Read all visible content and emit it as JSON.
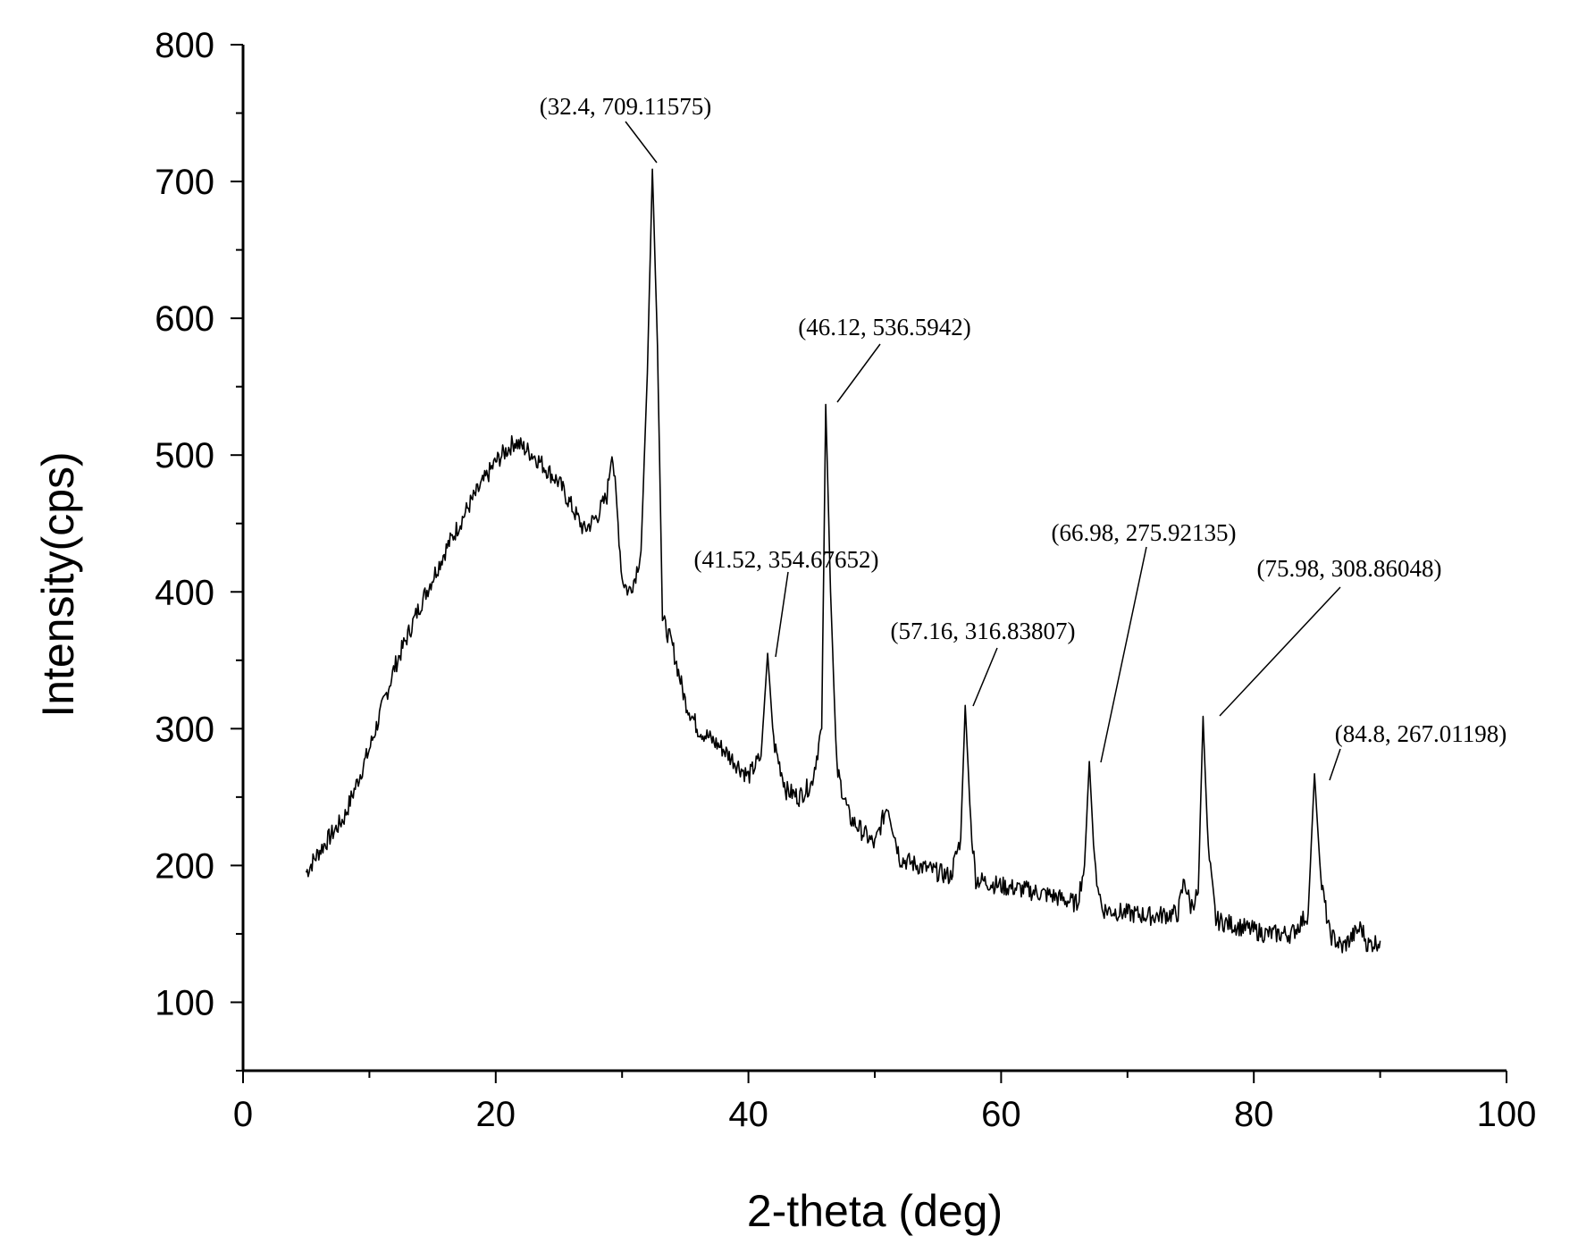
{
  "chart_data": {
    "type": "line",
    "xlabel": "2-theta (deg)",
    "ylabel": "Intensity(cps)",
    "xlim": [
      0,
      100
    ],
    "ylim": [
      50,
      800
    ],
    "x_ticks": [
      0,
      20,
      40,
      60,
      80,
      100
    ],
    "x_tick_labels": [
      "0",
      "20",
      "40",
      "60",
      "80",
      "100"
    ],
    "y_ticks": [
      100,
      200,
      300,
      400,
      500,
      600,
      700,
      800
    ],
    "y_tick_labels": [
      "100",
      "200",
      "300",
      "400",
      "500",
      "600",
      "700",
      "800"
    ],
    "grid": false,
    "series": [
      {
        "x": [
          5,
          6,
          8,
          10,
          12,
          14,
          16,
          18,
          20,
          21.5,
          23,
          25,
          27,
          28,
          28.8,
          29.2,
          29.6,
          30,
          30.5,
          31,
          31.5,
          32,
          32.4,
          32.8,
          33.2,
          34,
          35,
          36,
          38,
          40,
          41,
          41.52,
          42,
          43,
          44,
          45,
          45.8,
          46.12,
          46.5,
          47,
          48,
          50,
          51,
          52,
          54,
          56,
          56.8,
          57.16,
          57.6,
          58,
          60,
          62,
          64,
          66,
          66.6,
          66.98,
          67.4,
          68,
          70,
          72,
          74,
          74.5,
          75,
          75.6,
          75.98,
          76.4,
          77,
          79,
          81,
          83,
          84.3,
          84.8,
          85.3,
          86,
          87,
          88,
          88.5,
          89,
          90
        ],
        "y": [
          195,
          210,
          235,
          285,
          345,
          390,
          430,
          465,
          495,
          510,
          500,
          480,
          445,
          455,
          470,
          505,
          460,
          410,
          400,
          410,
          430,
          560,
          709,
          580,
          380,
          360,
          320,
          300,
          285,
          265,
          280,
          355,
          290,
          255,
          250,
          260,
          300,
          537,
          400,
          270,
          235,
          215,
          245,
          205,
          198,
          192,
          220,
          317,
          230,
          190,
          185,
          182,
          178,
          172,
          200,
          276,
          200,
          168,
          165,
          163,
          165,
          190,
          170,
          180,
          309,
          210,
          160,
          155,
          150,
          150,
          165,
          267,
          190,
          150,
          140,
          150,
          155,
          142,
          145
        ]
      }
    ],
    "annotations": [
      {
        "text": "(32.4, 709.11575)",
        "x": 32.4,
        "y": 709.11575
      },
      {
        "text": "(46.12, 536.5942)",
        "x": 46.12,
        "y": 536.5942
      },
      {
        "text": "(41.52, 354.67652)",
        "x": 41.52,
        "y": 354.67652
      },
      {
        "text": "(57.16, 316.83807)",
        "x": 57.16,
        "y": 316.83807
      },
      {
        "text": "(66.98, 275.92135)",
        "x": 66.98,
        "y": 275.92135
      },
      {
        "text": "(75.98, 308.86048)",
        "x": 75.98,
        "y": 308.86048
      },
      {
        "text": "(84.8, 267.01198)",
        "x": 84.8,
        "y": 267.01198
      }
    ]
  }
}
